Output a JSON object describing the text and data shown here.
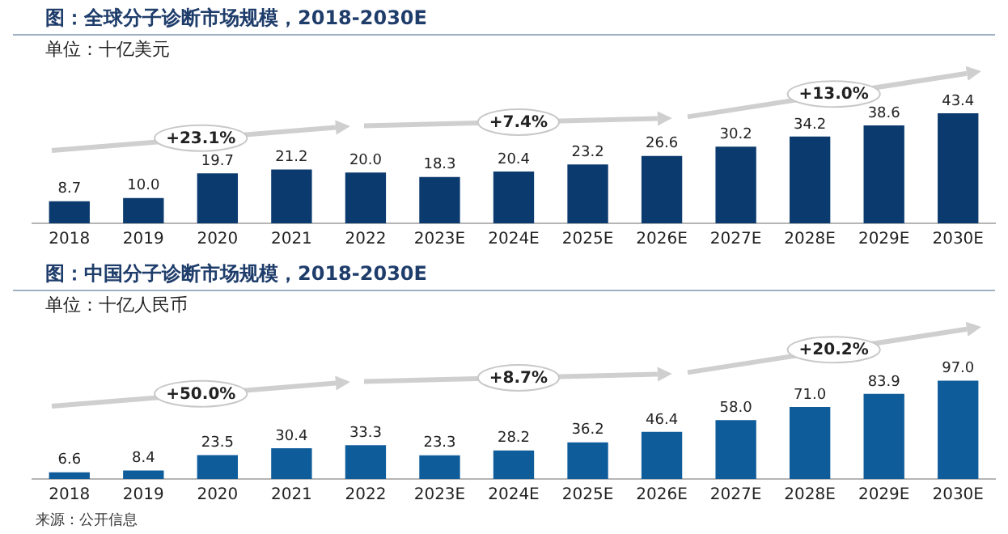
{
  "chart_data": [
    {
      "type": "bar",
      "title": "图：全球分子诊断市场规模，2018-2030E",
      "subtitle": "单位：十亿美元",
      "categories": [
        "2018",
        "2019",
        "2020",
        "2021",
        "2022",
        "2023E",
        "2024E",
        "2025E",
        "2026E",
        "2027E",
        "2028E",
        "2029E",
        "2030E"
      ],
      "values": [
        8.7,
        10.0,
        19.7,
        21.2,
        20.0,
        18.3,
        20.4,
        23.2,
        26.6,
        30.2,
        34.2,
        38.6,
        43.4
      ],
      "value_labels": [
        "8.7",
        "10.0",
        "19.7",
        "21.2",
        "20.0",
        "18.3",
        "20.4",
        "23.2",
        "26.6",
        "30.2",
        "34.2",
        "38.6",
        "43.4"
      ],
      "color": "#0b3a6e",
      "legend": false,
      "grid": false,
      "tick_labels": "x",
      "annotations": [
        "+23.1%",
        "+7.4%",
        "+13.0%"
      ]
    },
    {
      "type": "bar",
      "title": "图：中国分子诊断市场规模，2018-2030E",
      "subtitle": "单位：十亿人民币",
      "categories": [
        "2018",
        "2019",
        "2020",
        "2021",
        "2022",
        "2023E",
        "2024E",
        "2025E",
        "2026E",
        "2027E",
        "2028E",
        "2029E",
        "2030E"
      ],
      "values": [
        6.6,
        8.4,
        23.5,
        30.4,
        33.3,
        23.3,
        28.2,
        36.2,
        46.4,
        58.0,
        71.0,
        83.9,
        97.0
      ],
      "value_labels": [
        "6.6",
        "8.4",
        "23.5",
        "30.4",
        "33.3",
        "23.3",
        "28.2",
        "36.2",
        "46.4",
        "58.0",
        "71.0",
        "83.9",
        "97.0"
      ],
      "color": "#0f5c9b",
      "legend": false,
      "grid": false,
      "tick_labels": "x",
      "annotations": [
        "+50.0%",
        "+8.7%",
        "+20.2%",
        "来源：公开信息"
      ]
    }
  ]
}
